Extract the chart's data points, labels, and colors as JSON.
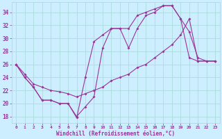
{
  "xlabel": "Windchill (Refroidissement éolien,°C)",
  "bg_color": "#cceeff",
  "grid_color": "#aadddd",
  "line_color": "#993399",
  "xlim": [
    -0.5,
    23.5
  ],
  "ylim": [
    17,
    35.5
  ],
  "xticks": [
    0,
    1,
    2,
    3,
    4,
    5,
    6,
    7,
    8,
    9,
    10,
    11,
    12,
    13,
    14,
    15,
    16,
    17,
    18,
    19,
    20,
    21,
    22,
    23
  ],
  "yticks": [
    18,
    20,
    22,
    24,
    26,
    28,
    30,
    32,
    34
  ],
  "line1_x": [
    0,
    1,
    2,
    3,
    4,
    5,
    6,
    7,
    8,
    9,
    10,
    11,
    12,
    13,
    14,
    15,
    16,
    17,
    18,
    19,
    20,
    21,
    22,
    23
  ],
  "line1_y": [
    26.0,
    24.0,
    22.5,
    20.5,
    20.5,
    20.0,
    20.0,
    18.0,
    19.5,
    21.0,
    28.5,
    31.5,
    31.5,
    28.5,
    31.5,
    33.5,
    34.0,
    35.0,
    35.0,
    33.0,
    31.0,
    27.0,
    26.5,
    26.5
  ],
  "line2_x": [
    0,
    1,
    2,
    3,
    4,
    5,
    6,
    7,
    8,
    9,
    10,
    11,
    12,
    13,
    14,
    15,
    16,
    17,
    18,
    19,
    20,
    21,
    22,
    23
  ],
  "line2_y": [
    26.0,
    24.5,
    23.0,
    22.5,
    22.0,
    21.8,
    21.5,
    21.0,
    21.5,
    22.0,
    22.5,
    23.5,
    24.0,
    24.5,
    25.5,
    26.0,
    27.0,
    28.0,
    29.0,
    30.5,
    33.0,
    26.5,
    26.5,
    26.5
  ],
  "line3_x": [
    0,
    1,
    2,
    3,
    4,
    5,
    6,
    7,
    8,
    9,
    10,
    11,
    12,
    13,
    14,
    15,
    16,
    17,
    18,
    19,
    20,
    21,
    22,
    23
  ],
  "line3_y": [
    26.0,
    24.0,
    22.5,
    20.5,
    20.5,
    20.0,
    20.0,
    17.8,
    24.0,
    29.5,
    30.5,
    31.5,
    31.5,
    31.5,
    33.5,
    34.0,
    34.5,
    35.0,
    35.0,
    33.0,
    27.0,
    26.5,
    26.5,
    26.5
  ]
}
